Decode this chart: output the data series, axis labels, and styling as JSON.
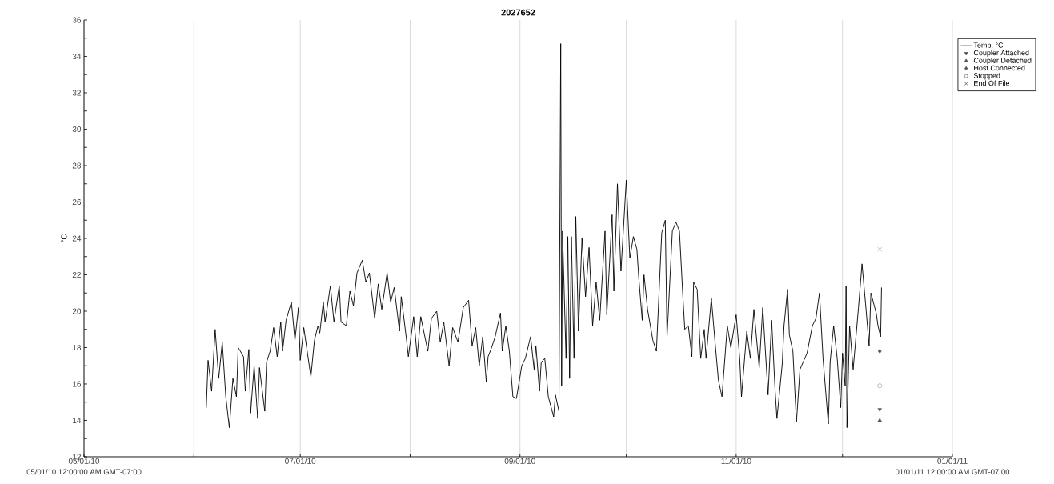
{
  "chart_data": {
    "type": "line",
    "title": "2027652",
    "ylabel": "°C",
    "xlim": [
      "2010-05-01",
      "2011-01-01"
    ],
    "xticks": [
      {
        "value": "2010-05-01",
        "label": "05/01/10"
      },
      {
        "value": "2010-06-01",
        "label": null
      },
      {
        "value": "2010-07-01",
        "label": "07/01/10"
      },
      {
        "value": "2010-08-01",
        "label": null
      },
      {
        "value": "2010-09-01",
        "label": "09/01/10"
      },
      {
        "value": "2010-10-01",
        "label": null
      },
      {
        "value": "2010-11-01",
        "label": "11/01/10"
      },
      {
        "value": "2010-12-01",
        "label": null
      },
      {
        "value": "2011-01-01",
        "label": "01/01/11"
      }
    ],
    "ylim": [
      12,
      36
    ],
    "yticks": [
      12,
      {
        "value": 13,
        "label": null
      },
      14,
      {
        "value": 15,
        "label": null
      },
      16,
      {
        "value": 17,
        "label": null
      },
      18,
      {
        "value": 19,
        "label": null
      },
      20,
      {
        "value": 21,
        "label": null
      },
      22,
      {
        "value": 23,
        "label": null
      },
      24,
      {
        "value": 25,
        "label": null
      },
      26,
      {
        "value": 27,
        "label": null
      },
      28,
      {
        "value": 29,
        "label": null
      },
      30,
      {
        "value": 31,
        "label": null
      },
      32,
      {
        "value": 33,
        "label": null
      },
      34,
      {
        "value": 35,
        "label": null
      },
      36
    ],
    "grid": "x",
    "legend": "top right",
    "annotations": [
      "05/01/10 12:00:00 AM GMT-07:00",
      "01/01/11 12:00:00 AM GMT-07:00"
    ],
    "series": [
      {
        "name": "Temp, °C",
        "color": "#000000",
        "marker": "none",
        "line_style": "solid",
        "x": [
          "2010-06-04T12:00",
          "2010-06-05",
          "2010-06-06",
          "2010-06-07",
          "2010-06-08",
          "2010-06-09",
          "2010-06-10",
          "2010-06-11",
          "2010-06-12",
          "2010-06-13",
          "2010-06-13T12:00",
          "2010-06-15",
          "2010-06-15T12:00",
          "2010-06-16T12:00",
          "2010-06-17",
          "2010-06-18",
          "2010-06-19",
          "2010-06-19T12:00",
          "2010-06-21",
          "2010-06-21T12:00",
          "2010-06-22T12:00",
          "2010-06-23T12:00",
          "2010-06-24T12:00",
          "2010-06-25T12:00",
          "2010-06-26",
          "2010-06-27",
          "2010-06-28T12:00",
          "2010-06-29T12:00",
          "2010-06-30T12:00",
          "2010-07-01",
          "2010-07-02",
          "2010-07-04",
          "2010-07-05",
          "2010-07-06",
          "2010-07-06T12:00",
          "2010-07-07T12:00",
          "2010-07-08",
          "2010-07-09T12:00",
          "2010-07-10T12:00",
          "2010-07-12",
          "2010-07-12T12:00",
          "2010-07-14",
          "2010-07-15",
          "2010-07-16",
          "2010-07-17",
          "2010-07-18T12:00",
          "2010-07-19T12:00",
          "2010-07-20T12:00",
          "2010-07-22",
          "2010-07-23",
          "2010-07-24",
          "2010-07-25T12:00",
          "2010-07-26T12:00",
          "2010-07-27T12:00",
          "2010-07-29",
          "2010-07-29T12:00",
          "2010-07-31",
          "2010-07-31T12:00",
          "2010-08-02",
          "2010-08-03",
          "2010-08-04",
          "2010-08-06",
          "2010-08-07",
          "2010-08-08T12:00",
          "2010-08-09T12:00",
          "2010-08-10T12:00",
          "2010-08-12",
          "2010-08-13",
          "2010-08-14T12:00",
          "2010-08-16",
          "2010-08-17T12:00",
          "2010-08-18T12:00",
          "2010-08-19T12:00",
          "2010-08-20T12:00",
          "2010-08-21T12:00",
          "2010-08-22T12:00",
          "2010-08-23",
          "2010-08-24",
          "2010-08-25",
          "2010-08-26T12:00",
          "2010-08-27",
          "2010-08-28",
          "2010-08-29",
          "2010-08-30",
          "2010-08-31",
          "2010-09-01T12:00",
          "2010-09-02T12:00",
          "2010-09-04",
          "2010-09-05",
          "2010-09-05T12:00",
          "2010-09-06T12:00",
          "2010-09-07",
          "2010-09-08",
          "2010-09-09",
          "2010-09-10T12:00",
          "2010-09-11",
          "2010-09-12",
          "2010-09-12T12:00",
          "2010-09-12T18:00",
          "2010-09-13",
          "2010-09-14",
          "2010-09-14T12:00",
          "2010-09-15",
          "2010-09-15T12:00",
          "2010-09-16T06:00",
          "2010-09-16T18:00",
          "2010-09-17T12:00",
          "2010-09-18T12:00",
          "2010-09-19T12:00",
          "2010-09-20T12:00",
          "2010-09-21T12:00",
          "2010-09-22T12:00",
          "2010-09-23T12:00",
          "2010-09-25",
          "2010-09-25T12:00",
          "2010-09-27",
          "2010-09-27T12:00",
          "2010-09-28T12:00",
          "2010-09-29T12:00",
          "2010-10-01",
          "2010-10-02",
          "2010-10-03",
          "2010-10-04",
          "2010-10-04T12:00",
          "2010-10-05T12:00",
          "2010-10-06",
          "2010-10-07",
          "2010-10-08T12:00",
          "2010-10-09T12:00",
          "2010-10-11",
          "2010-10-12",
          "2010-10-12T12:00",
          "2010-10-14",
          "2010-10-15",
          "2010-10-16",
          "2010-10-17",
          "2010-10-17T12:00",
          "2010-10-18T12:00",
          "2010-10-19T12:00",
          "2010-10-20",
          "2010-10-21",
          "2010-10-22",
          "2010-10-23",
          "2010-10-23T12:00",
          "2010-10-25",
          "2010-10-26",
          "2010-10-27",
          "2010-10-28",
          "2010-10-28T12:00",
          "2010-10-29T12:00",
          "2010-10-30T12:00",
          "2010-10-31T12:00",
          "2010-11-01",
          "2010-11-02",
          "2010-11-02T12:00",
          "2010-11-04",
          "2010-11-05",
          "2010-11-06",
          "2010-11-07T12:00",
          "2010-11-08T12:00",
          "2010-11-10",
          "2010-11-11",
          "2010-11-12",
          "2010-11-12T12:00",
          "2010-11-14",
          "2010-11-14T12:00",
          "2010-11-15T12:00",
          "2010-11-16",
          "2010-11-17",
          "2010-11-18",
          "2010-11-19",
          "2010-11-21",
          "2010-11-22T12:00",
          "2010-11-23T12:00",
          "2010-11-24T12:00",
          "2010-11-25T12:00",
          "2010-11-27",
          "2010-11-27T12:00",
          "2010-11-28T12:00",
          "2010-11-29T12:00",
          "2010-11-30T12:00",
          "2010-12-01",
          "2010-12-01T18:00",
          "2010-12-02",
          "2010-12-02T06:00",
          "2010-12-03",
          "2010-12-04",
          "2010-12-05T12:00",
          "2010-12-06T12:00",
          "2010-12-07T12:00",
          "2010-12-08T12:00",
          "2010-12-09",
          "2010-12-10T12:00",
          "2010-12-11",
          "2010-12-11T18:00",
          "2010-12-12"
        ],
        "values": [
          14.7,
          17.3,
          15.6,
          19.0,
          16.3,
          18.3,
          15.3,
          13.6,
          16.3,
          15.3,
          18.0,
          17.5,
          15.6,
          17.9,
          14.4,
          17.0,
          14.1,
          16.9,
          14.5,
          17.2,
          17.8,
          19.1,
          17.5,
          19.4,
          17.8,
          19.5,
          20.5,
          18.4,
          20.2,
          17.3,
          19.1,
          16.4,
          18.4,
          19.2,
          18.8,
          20.5,
          19.4,
          21.4,
          19.4,
          21.4,
          19.4,
          19.2,
          21.1,
          20.3,
          22.1,
          22.8,
          21.6,
          22.1,
          19.6,
          21.5,
          20.1,
          22.1,
          20.5,
          21.3,
          18.9,
          20.8,
          18.4,
          17.5,
          19.7,
          17.5,
          19.7,
          17.8,
          19.6,
          20.0,
          18.3,
          19.4,
          17.0,
          19.1,
          18.3,
          20.2,
          20.6,
          18.1,
          19.1,
          17.0,
          18.6,
          16.1,
          17.5,
          18.0,
          18.6,
          19.9,
          17.8,
          19.2,
          17.8,
          15.3,
          15.2,
          17.0,
          17.4,
          18.6,
          16.8,
          18.1,
          15.6,
          17.2,
          17.4,
          15.3,
          14.2,
          15.4,
          14.5,
          34.7,
          15.9,
          24.4,
          17.4,
          24.1,
          16.3,
          24.1,
          17.4,
          25.2,
          18.9,
          24.0,
          20.8,
          23.5,
          19.2,
          21.6,
          19.5,
          24.4,
          19.8,
          25.3,
          21.1,
          27.0,
          22.2,
          27.2,
          22.9,
          24.1,
          23.4,
          21.9,
          19.5,
          22.0,
          20.1,
          18.4,
          17.8,
          24.3,
          25.0,
          18.6,
          24.4,
          24.9,
          24.4,
          20.7,
          19.0,
          19.2,
          17.5,
          21.6,
          21.2,
          17.4,
          19.0,
          17.4,
          20.7,
          18.4,
          16.2,
          15.3,
          16.6,
          19.2,
          18.0,
          19.2,
          19.8,
          17.4,
          15.3,
          18.9,
          17.4,
          20.1,
          16.9,
          20.2,
          15.4,
          19.5,
          15.6,
          14.1,
          17.1,
          19.2,
          21.2,
          18.7,
          17.8,
          13.9,
          16.8,
          17.7,
          19.2,
          19.6,
          21.0,
          17.4,
          13.8,
          17.2,
          19.2,
          17.4,
          14.7,
          17.7,
          15.9,
          21.4,
          13.6,
          19.2,
          16.8,
          20.2,
          22.6,
          20.4,
          18.1,
          21.0,
          19.9,
          19.2,
          18.6,
          21.3
        ]
      },
      {
        "name": "Coupler Attached",
        "type": "scatter",
        "color": "#555555",
        "marker": "triangle down",
        "x": [
          "2010-12-11T12:00"
        ],
        "values": [
          14.6
        ]
      },
      {
        "name": "Coupler Detached",
        "type": "scatter",
        "color": "#555555",
        "marker": "triangle",
        "x": [
          "2010-12-11T12:00"
        ],
        "values": [
          14.0
        ]
      },
      {
        "name": "Host Connected",
        "type": "scatter",
        "color": "#555555",
        "marker": "diamond",
        "x": [
          "2010-12-11T12:00"
        ],
        "values": [
          17.8
        ]
      },
      {
        "name": "Stopped",
        "type": "scatter",
        "color": "#555555",
        "marker": "circle",
        "x": [
          "2010-12-11T12:00"
        ],
        "values": [
          15.9
        ]
      },
      {
        "name": "End Of File",
        "type": "scatter",
        "color": "#555555",
        "marker": "cross",
        "x": [
          "2010-12-11T12:00"
        ],
        "values": [
          23.4
        ]
      }
    ]
  }
}
